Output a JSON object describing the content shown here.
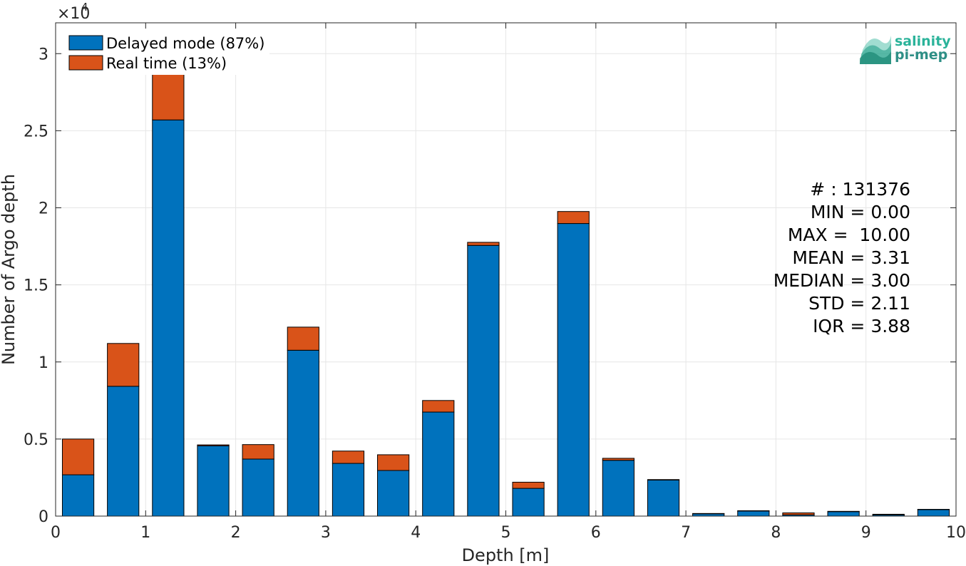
{
  "chart_data": {
    "type": "bar",
    "stacked": true,
    "xlabel": "Depth [m]",
    "ylabel": "Number of Argo depth",
    "xlim": [
      0,
      10
    ],
    "ylim": [
      0,
      32000
    ],
    "x_ticks": [
      0,
      1,
      2,
      3,
      4,
      5,
      6,
      7,
      8,
      9,
      10
    ],
    "y_ticks": [
      0,
      5000,
      10000,
      15000,
      20000,
      25000,
      30000
    ],
    "y_tick_labels": [
      "0",
      "0.5",
      "1",
      "1.5",
      "2",
      "2.5",
      "3"
    ],
    "y_exponent": {
      "base": "×10",
      "power": "4"
    },
    "grid": true,
    "legend_position": "top-left",
    "bin_width": 0.5,
    "bin_centers": [
      0.25,
      0.75,
      1.25,
      1.75,
      2.25,
      2.75,
      3.25,
      3.75,
      4.25,
      4.75,
      5.25,
      5.75,
      6.25,
      6.75,
      7.25,
      7.75,
      8.25,
      8.75,
      9.25,
      9.75
    ],
    "series": [
      {
        "name": "Delayed mode (87%)",
        "color": "#0072BD",
        "values": [
          2680,
          8420,
          25700,
          4560,
          3700,
          10760,
          3420,
          2960,
          6750,
          17560,
          1800,
          18980,
          3620,
          2340,
          150,
          330,
          80,
          290,
          80,
          420
        ]
      },
      {
        "name": "Real time (13%)",
        "color": "#D95319",
        "values": [
          2320,
          2780,
          4900,
          60,
          940,
          1500,
          800,
          1020,
          750,
          200,
          400,
          780,
          130,
          30,
          20,
          20,
          130,
          20,
          40,
          20
        ]
      }
    ],
    "stats": [
      "# : 131376",
      "MIN = 0.00",
      "MAX =  10.00",
      "MEAN = 3.31",
      "MEDIAN = 3.00",
      "STD = 2.11",
      "IQR = 3.88"
    ]
  },
  "logo": {
    "line1": "salinity",
    "line2": "pi-mep"
  }
}
